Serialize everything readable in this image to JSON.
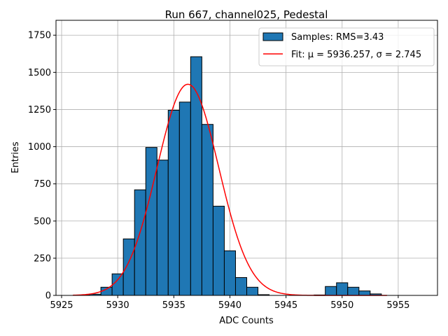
{
  "chart_data": {
    "type": "bar",
    "title": "Run 667, channel025, Pedestal",
    "xlabel": "ADC Counts",
    "ylabel": "Entries",
    "xlim": [
      5924.5,
      5958.5
    ],
    "ylim": [
      0,
      1850
    ],
    "xticks": [
      5925,
      5930,
      5935,
      5940,
      5945,
      5950,
      5955
    ],
    "yticks": [
      0,
      250,
      500,
      750,
      1000,
      1250,
      1500,
      1750
    ],
    "grid": true,
    "legend_placement": "top-right",
    "bin_width": 1,
    "histogram": {
      "name": "Samples: RMS=3.43",
      "color": "#1f77b4",
      "bins": [
        {
          "x": 5927,
          "y": 2
        },
        {
          "x": 5928,
          "y": 8
        },
        {
          "x": 5929,
          "y": 55
        },
        {
          "x": 5930,
          "y": 145
        },
        {
          "x": 5931,
          "y": 380
        },
        {
          "x": 5932,
          "y": 710
        },
        {
          "x": 5933,
          "y": 995
        },
        {
          "x": 5934,
          "y": 910
        },
        {
          "x": 5935,
          "y": 1245
        },
        {
          "x": 5936,
          "y": 1300
        },
        {
          "x": 5937,
          "y": 1605
        },
        {
          "x": 5938,
          "y": 1150
        },
        {
          "x": 5939,
          "y": 600
        },
        {
          "x": 5940,
          "y": 300
        },
        {
          "x": 5941,
          "y": 120
        },
        {
          "x": 5942,
          "y": 55
        },
        {
          "x": 5943,
          "y": 5
        },
        {
          "x": 5948,
          "y": 3
        },
        {
          "x": 5949,
          "y": 60
        },
        {
          "x": 5950,
          "y": 85
        },
        {
          "x": 5951,
          "y": 55
        },
        {
          "x": 5952,
          "y": 30
        },
        {
          "x": 5953,
          "y": 10
        }
      ]
    },
    "fit": {
      "name": "Fit: μ = 5936.257, σ = 2.745",
      "color": "#ff0000",
      "mu": 5936.257,
      "sigma": 2.745,
      "amplitude": 1420,
      "x_range": [
        5926,
        5954
      ]
    }
  }
}
